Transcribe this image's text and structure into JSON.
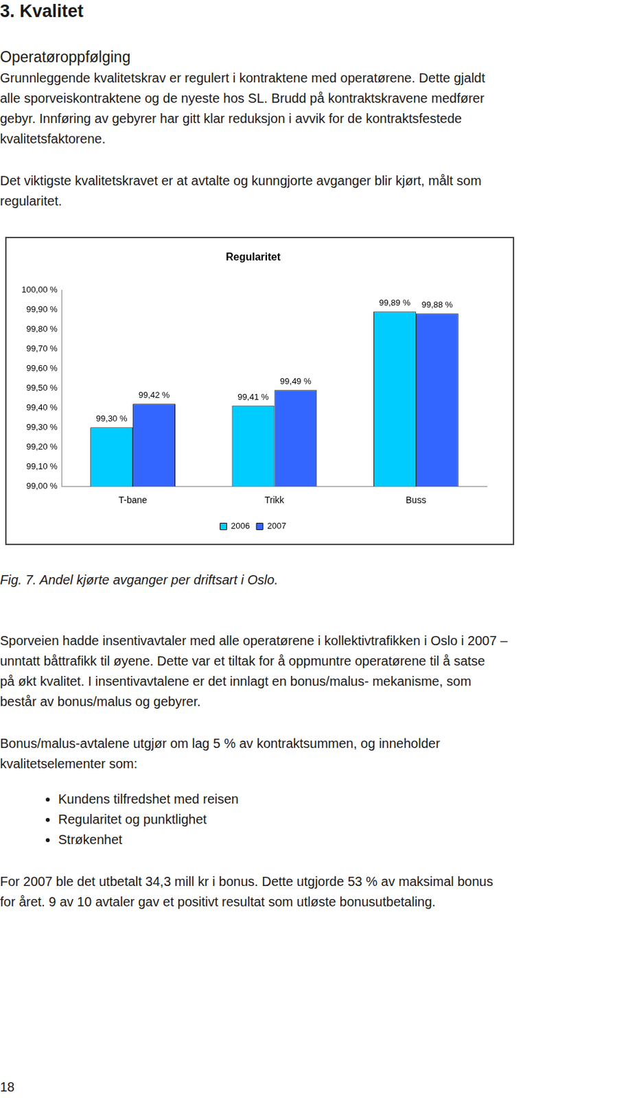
{
  "heading": "3. Kvalitet",
  "subheading": "Operatøroppfølging",
  "paragraphs_before": [
    [
      "Grunnleggende kvalitetskrav er regulert i kontraktene med operatørene. Dette gjaldt",
      "alle sporveiskontraktene og de nyeste hos SL. Brudd på kontraktskravene medfører",
      "gebyr. Innføring av gebyrer har gitt klar reduksjon i avvik for de kontraktsfestede",
      "kvalitetsfaktorene."
    ],
    [
      "Det viktigste kvalitetskravet er at avtalte og kunngjorte avganger blir kjørt, målt som",
      "regularitet."
    ]
  ],
  "chart_data": {
    "type": "bar",
    "title": "Regularitet",
    "categories": [
      "T-bane",
      "Trikk",
      "Buss"
    ],
    "series": [
      {
        "name": "2006",
        "color": "#00ccff",
        "values": [
          99.3,
          99.41,
          99.89
        ],
        "value_labels": [
          "99,30 %",
          "99,41 %",
          "99,89 %"
        ]
      },
      {
        "name": "2007",
        "color": "#3366ff",
        "values": [
          99.42,
          99.49,
          99.88
        ],
        "value_labels": [
          "99,42 %",
          "99,49 %",
          "99,88 %"
        ]
      }
    ],
    "ylim": [
      99,
      100
    ],
    "yticks": [
      {
        "value": 99.0,
        "label": "99,00 %"
      },
      {
        "value": 99.1,
        "label": "99,10 %"
      },
      {
        "value": 99.2,
        "label": "99,20 %"
      },
      {
        "value": 99.3,
        "label": "99,30 %"
      },
      {
        "value": 99.4,
        "label": "99,40 %"
      },
      {
        "value": 99.5,
        "label": "99,50 %"
      },
      {
        "value": 99.6,
        "label": "99,60 %"
      },
      {
        "value": 99.7,
        "label": "99,70 %"
      },
      {
        "value": 99.8,
        "label": "99,80 %"
      },
      {
        "value": 99.9,
        "label": "99,90 %"
      },
      {
        "value": 100.0,
        "label": "100,00 %"
      }
    ],
    "grid": false,
    "legend": "bottom",
    "data_labels": true
  },
  "caption": "Fig. 7. Andel kjørte avganger per driftsart i Oslo.",
  "paragraphs_after": [
    [
      "Sporveien hadde insentivavtaler med alle operatørene i kollektivtrafikken i Oslo i 2007 –",
      "unntatt båttrafikk til øyene. Dette var et tiltak for å oppmuntre operatørene til å satse",
      "på økt kvalitet. I insentivavtalene er det innlagt en bonus/malus- mekanisme, som",
      "består av bonus/malus og gebyrer."
    ],
    [
      "Bonus/malus-avtalene utgjør om lag 5 % av kontraktsummen, og inneholder",
      "kvalitetselementer som:"
    ]
  ],
  "bullets": [
    "Kundens tilfredshet med reisen",
    "Regularitet og punktlighet",
    "Strøkenhet"
  ],
  "closing": [
    "For 2007 ble det utbetalt 34,3 mill kr i bonus. Dette utgjorde 53 % av maksimal bonus",
    "for året. 9 av 10 avtaler gav et positivt resultat som utløste bonusutbetaling."
  ],
  "page_number": "18"
}
